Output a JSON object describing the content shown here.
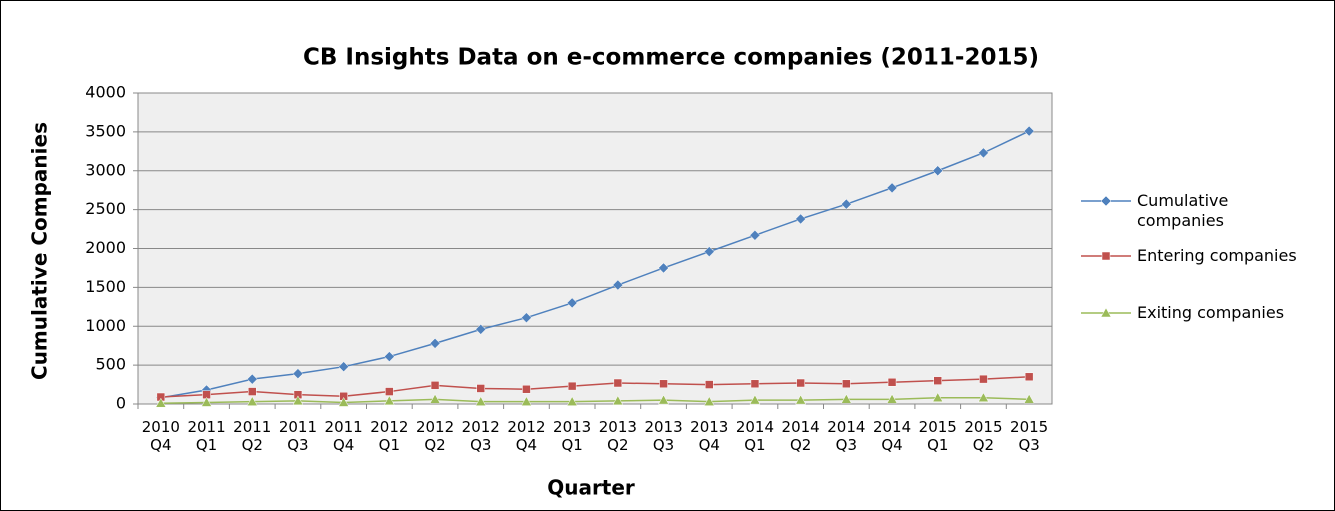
{
  "chart_data": {
    "type": "line",
    "title": "CB Insights Data on e-commerce companies (2011-2015)",
    "x_label": "Quarter",
    "y_label": "Cumulative Companies",
    "categories": [
      "2010 Q4",
      "2011 Q1",
      "2011 Q2",
      "2011 Q3",
      "2011 Q4",
      "2012 Q1",
      "2012 Q2",
      "2012 Q3",
      "2012 Q4",
      "2013 Q1",
      "2013 Q2",
      "2013 Q3",
      "2013 Q4",
      "2014 Q1",
      "2014 Q2",
      "2014 Q3",
      "2014 Q4",
      "2015 Q1",
      "2015 Q2",
      "2015 Q3"
    ],
    "series": [
      {
        "name": "Cumulative companies",
        "color": "#4f81bd",
        "marker": "diamond",
        "values": [
          80,
          180,
          320,
          390,
          480,
          610,
          780,
          960,
          1110,
          1300,
          1530,
          1750,
          1960,
          2170,
          2380,
          2570,
          2780,
          3000,
          3230,
          3510
        ]
      },
      {
        "name": "Entering companies",
        "color": "#c0504d",
        "marker": "square",
        "values": [
          90,
          120,
          160,
          120,
          100,
          160,
          240,
          200,
          190,
          230,
          270,
          260,
          250,
          260,
          270,
          260,
          280,
          300,
          320,
          350
        ]
      },
      {
        "name": "Exiting companies",
        "color": "#9bbb59",
        "marker": "triangle",
        "values": [
          10,
          20,
          30,
          40,
          20,
          40,
          60,
          30,
          30,
          30,
          40,
          50,
          30,
          50,
          50,
          60,
          60,
          80,
          80,
          60
        ]
      }
    ],
    "ylim": [
      0,
      4000
    ],
    "yticks": [
      0,
      500,
      1000,
      1500,
      2000,
      2500,
      3000,
      3500,
      4000
    ],
    "grid": true,
    "legend": "right"
  }
}
